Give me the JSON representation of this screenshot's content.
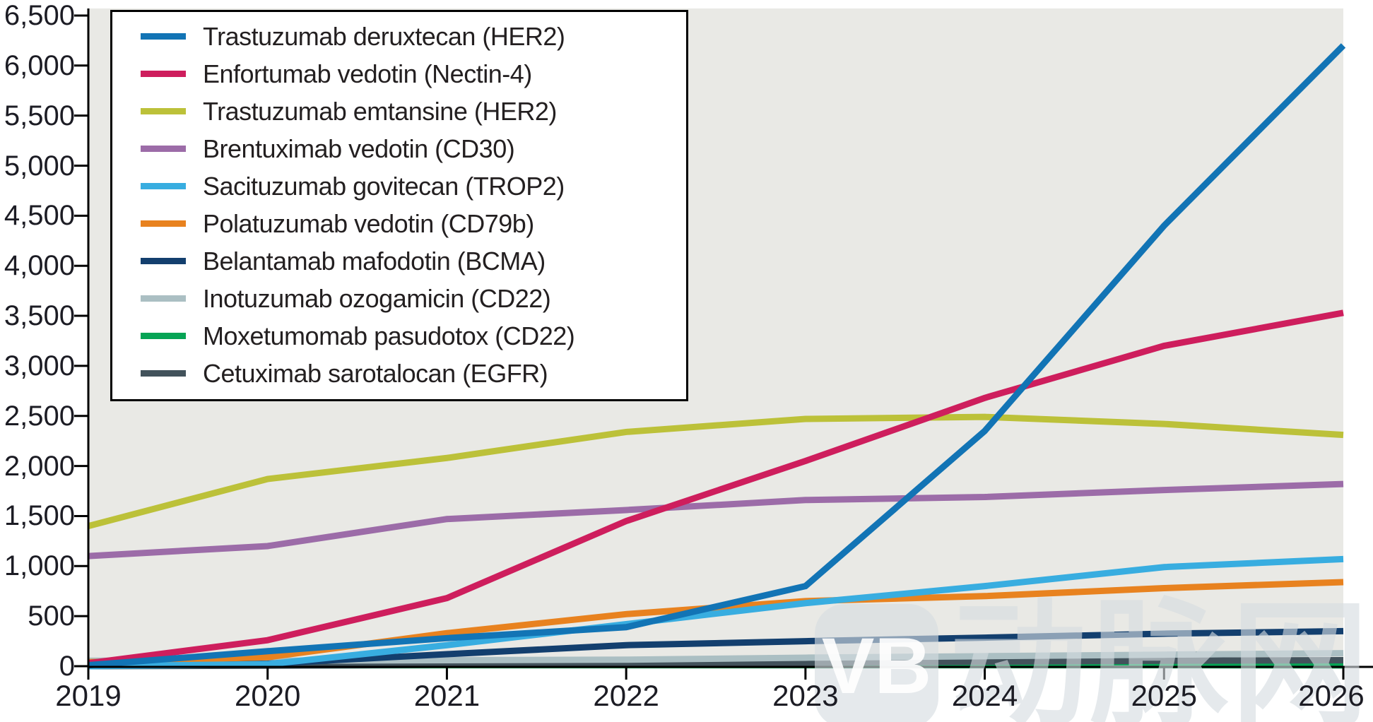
{
  "watermark": {
    "logo_text": "VB",
    "text": "动脉网"
  },
  "colors": {
    "plot_bg": "#e9e9e5",
    "axis": "#000000",
    "text": "#1c1c24"
  },
  "chart_data": {
    "type": "line",
    "title": "",
    "x": [
      2019,
      2020,
      2021,
      2022,
      2023,
      2024,
      2025,
      2026
    ],
    "x_tick_labels": [
      "2019",
      "2020",
      "2021",
      "2022",
      "2023",
      "2024",
      "2025",
      "2026"
    ],
    "y_tick_labels": [
      "0",
      "500",
      "1,000",
      "1,500",
      "2,000",
      "2,500",
      "3,000",
      "3,500",
      "4,000",
      "4,500",
      "5,000",
      "5,500",
      "6,000",
      "6,500"
    ],
    "ylim": [
      0,
      6500
    ],
    "ytick_step": 500,
    "grid": false,
    "legend_position": "top-left",
    "series": [
      {
        "name": "Trastuzumab deruxtecan (HER2)",
        "color": "#1274b5",
        "values": [
          10,
          150,
          280,
          390,
          800,
          2350,
          4400,
          6200
        ]
      },
      {
        "name": "Enfortumab vedotin (Nectin-4)",
        "color": "#ce1e5d",
        "values": [
          30,
          260,
          680,
          1450,
          2050,
          2680,
          3200,
          3530
        ]
      },
      {
        "name": "Trastuzumab emtansine (HER2)",
        "color": "#bcc139",
        "values": [
          1400,
          1870,
          2080,
          2340,
          2470,
          2490,
          2420,
          2310
        ]
      },
      {
        "name": "Brentuximab vedotin (CD30)",
        "color": "#9c6ca8",
        "values": [
          1100,
          1200,
          1470,
          1560,
          1660,
          1690,
          1760,
          1820
        ]
      },
      {
        "name": "Sacituzumab govitecan (TROP2)",
        "color": "#38ade0",
        "values": [
          0,
          20,
          210,
          420,
          630,
          800,
          990,
          1070
        ]
      },
      {
        "name": "Polatuzumab vedotin (CD79b)",
        "color": "#e8821f",
        "values": [
          40,
          90,
          330,
          520,
          650,
          700,
          780,
          840
        ]
      },
      {
        "name": "Belantamab mafodotin (BCMA)",
        "color": "#133f6e",
        "values": [
          0,
          25,
          120,
          210,
          250,
          285,
          325,
          350
        ]
      },
      {
        "name": "Inotuzumab ozogamicin (CD22)",
        "color": "#abbfc3",
        "values": [
          55,
          55,
          60,
          65,
          85,
          100,
          115,
          130
        ]
      },
      {
        "name": "Moxetumomab pasudotox (CD22)",
        "color": "#06a455",
        "values": [
          5,
          8,
          10,
          10,
          10,
          10,
          10,
          8
        ]
      },
      {
        "name": "Cetuximab sarotalocan (EGFR)",
        "color": "#42525b",
        "values": [
          0,
          5,
          15,
          25,
          35,
          45,
          55,
          60
        ]
      }
    ]
  }
}
